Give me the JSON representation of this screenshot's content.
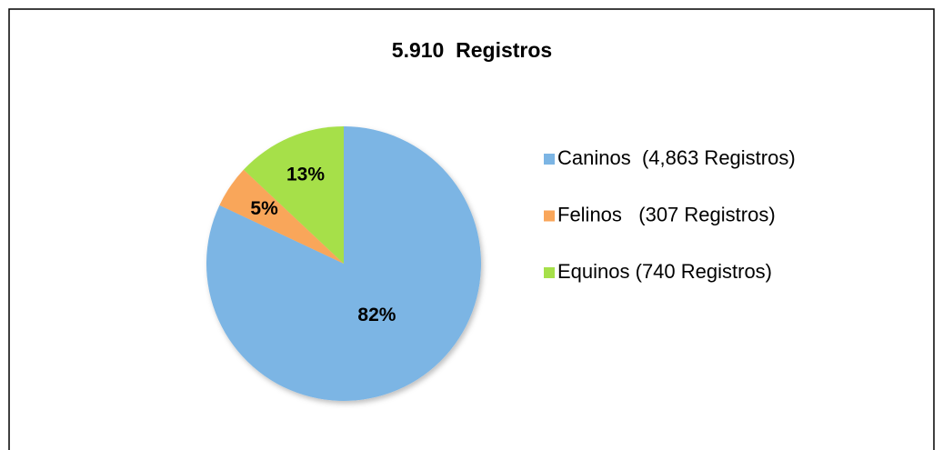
{
  "chart_data": {
    "type": "pie",
    "title": "5.910  Registros",
    "categories": [
      "Caninos  (4,863 Registros)",
      "Felinos   (307 Registros)",
      "Equinos (740 Registros)"
    ],
    "values": [
      82,
      5,
      13
    ],
    "value_labels": [
      "82%",
      "5%",
      "13%"
    ],
    "colors": [
      "#7cb5e4",
      "#f9a65a",
      "#a6e04a"
    ],
    "legend": "right"
  }
}
